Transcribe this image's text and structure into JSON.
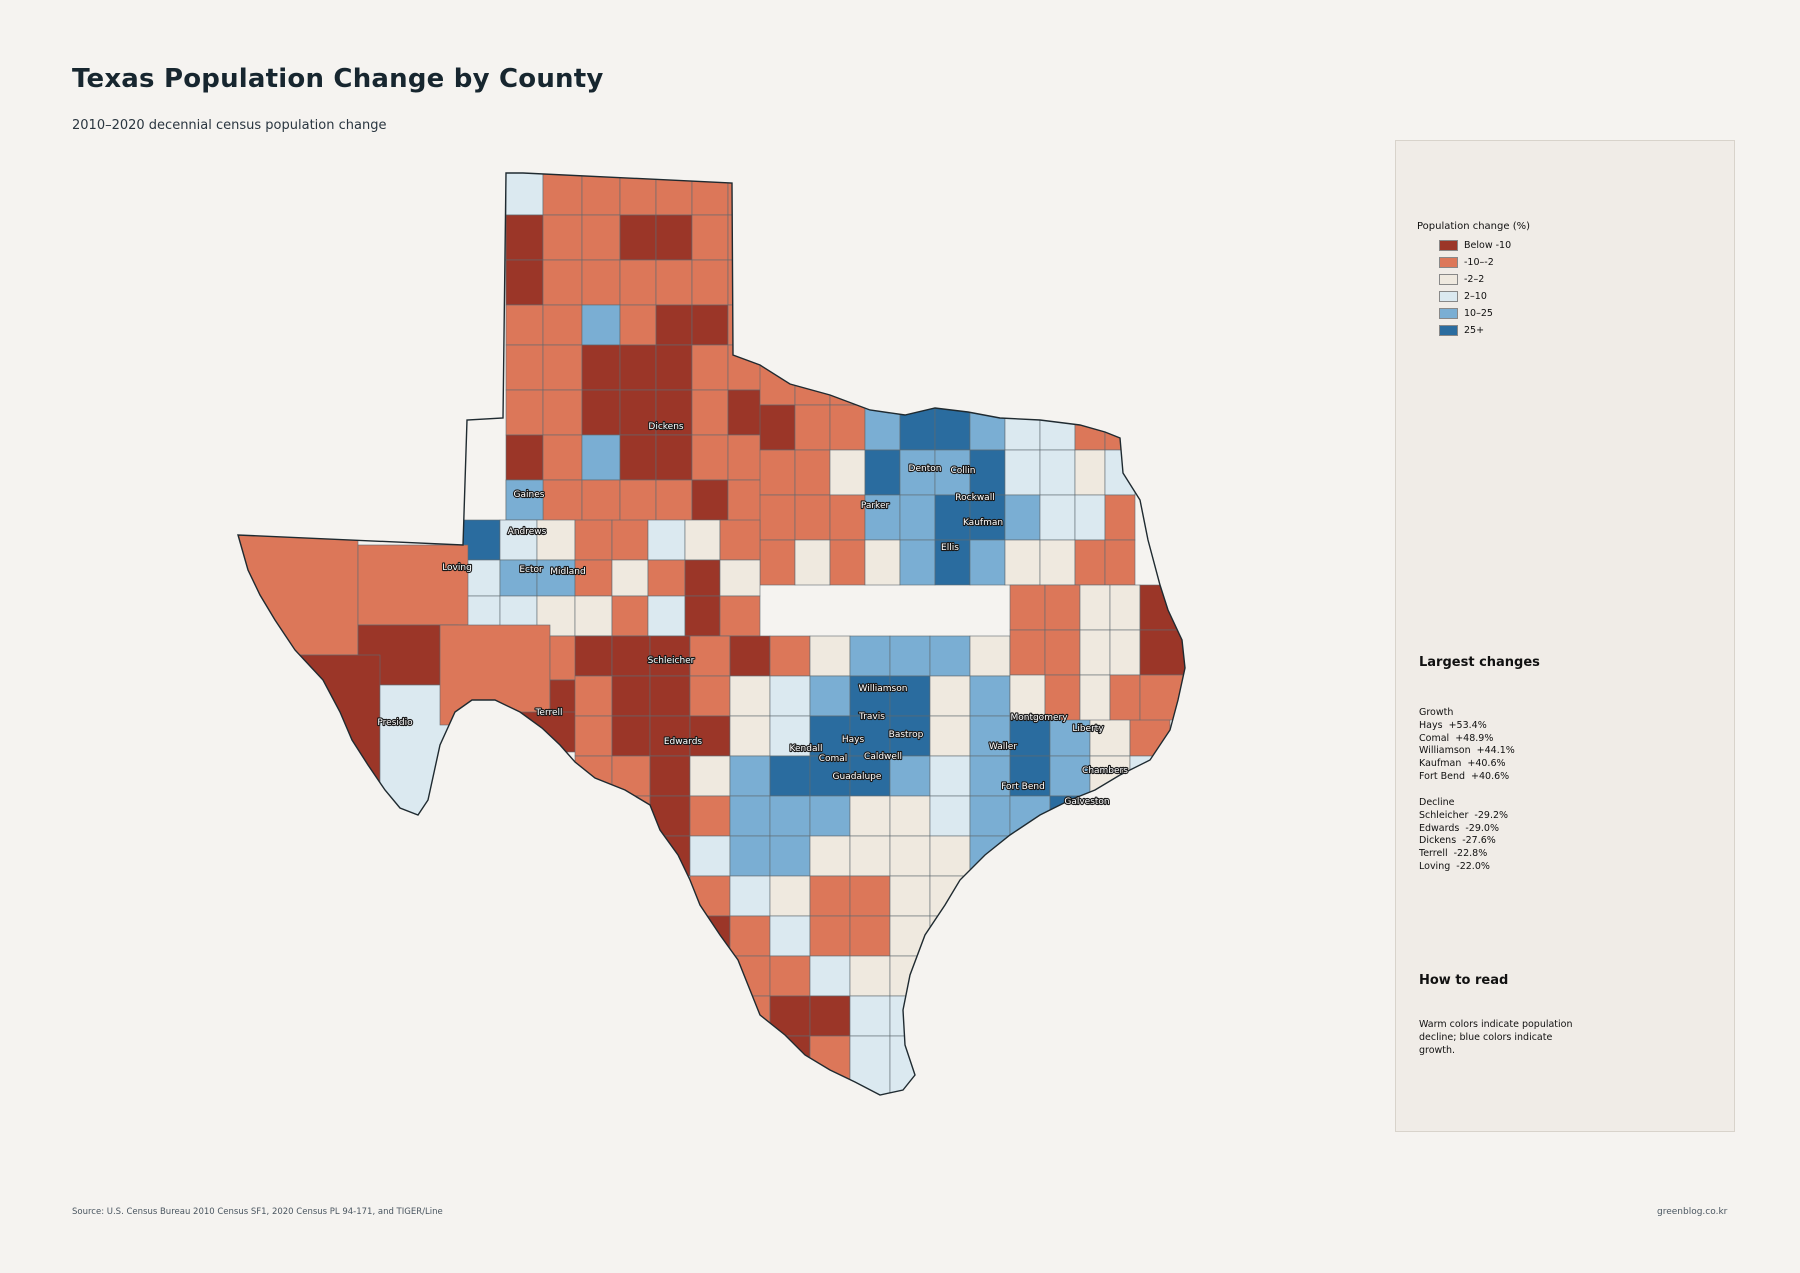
{
  "title": "Texas Population Change by County",
  "subtitle": "2010–2020 decennial census population change",
  "legend": {
    "title": "Population change (%)",
    "items": [
      {
        "label": "Below -10",
        "color": "#9b3628"
      },
      {
        "label": "-10–-2",
        "color": "#dc7759"
      },
      {
        "label": "-2–2",
        "color": "#efe9df"
      },
      {
        "label": "2–10",
        "color": "#dbe9f0"
      },
      {
        "label": "10–25",
        "color": "#7aaed3"
      },
      {
        "label": "25+",
        "color": "#2a6c9f"
      }
    ]
  },
  "largest_changes": {
    "title": "Largest changes",
    "growth_heading": "Growth",
    "growth": [
      "Hays  +53.4%",
      "Comal  +48.9%",
      "Williamson  +44.1%",
      "Kaufman  +40.6%",
      "Fort Bend  +40.6%"
    ],
    "decline_heading": "Decline",
    "decline": [
      "Schleicher  -29.2%",
      "Edwards  -29.0%",
      "Dickens  -27.6%",
      "Terrell  -22.8%",
      "Loving  -22.0%"
    ]
  },
  "how_to_read": {
    "title": "How to read",
    "text": "Warm colors indicate population decline; blue colors indicate growth."
  },
  "county_labels": [
    "Dickens",
    "Denton",
    "Collin",
    "Parker",
    "Rockwall",
    "Gaines",
    "Kaufman",
    "Andrews",
    "Ellis",
    "Loving",
    "Ector",
    "Midland",
    "Schleicher",
    "Williamson",
    "Presidio",
    "Terrell",
    "Travis",
    "Montgomery",
    "Bastrop",
    "Hays",
    "Liberty",
    "Edwards",
    "Kendall",
    "Waller",
    "Comal",
    "Caldwell",
    "Chambers",
    "Guadalupe",
    "Fort Bend",
    "Galveston"
  ],
  "source": "Source: U.S. Census Bureau 2010 Census SF1, 2020 Census PL 94-171, and TIGER/Line",
  "credit": "greenblog.co.kr"
}
